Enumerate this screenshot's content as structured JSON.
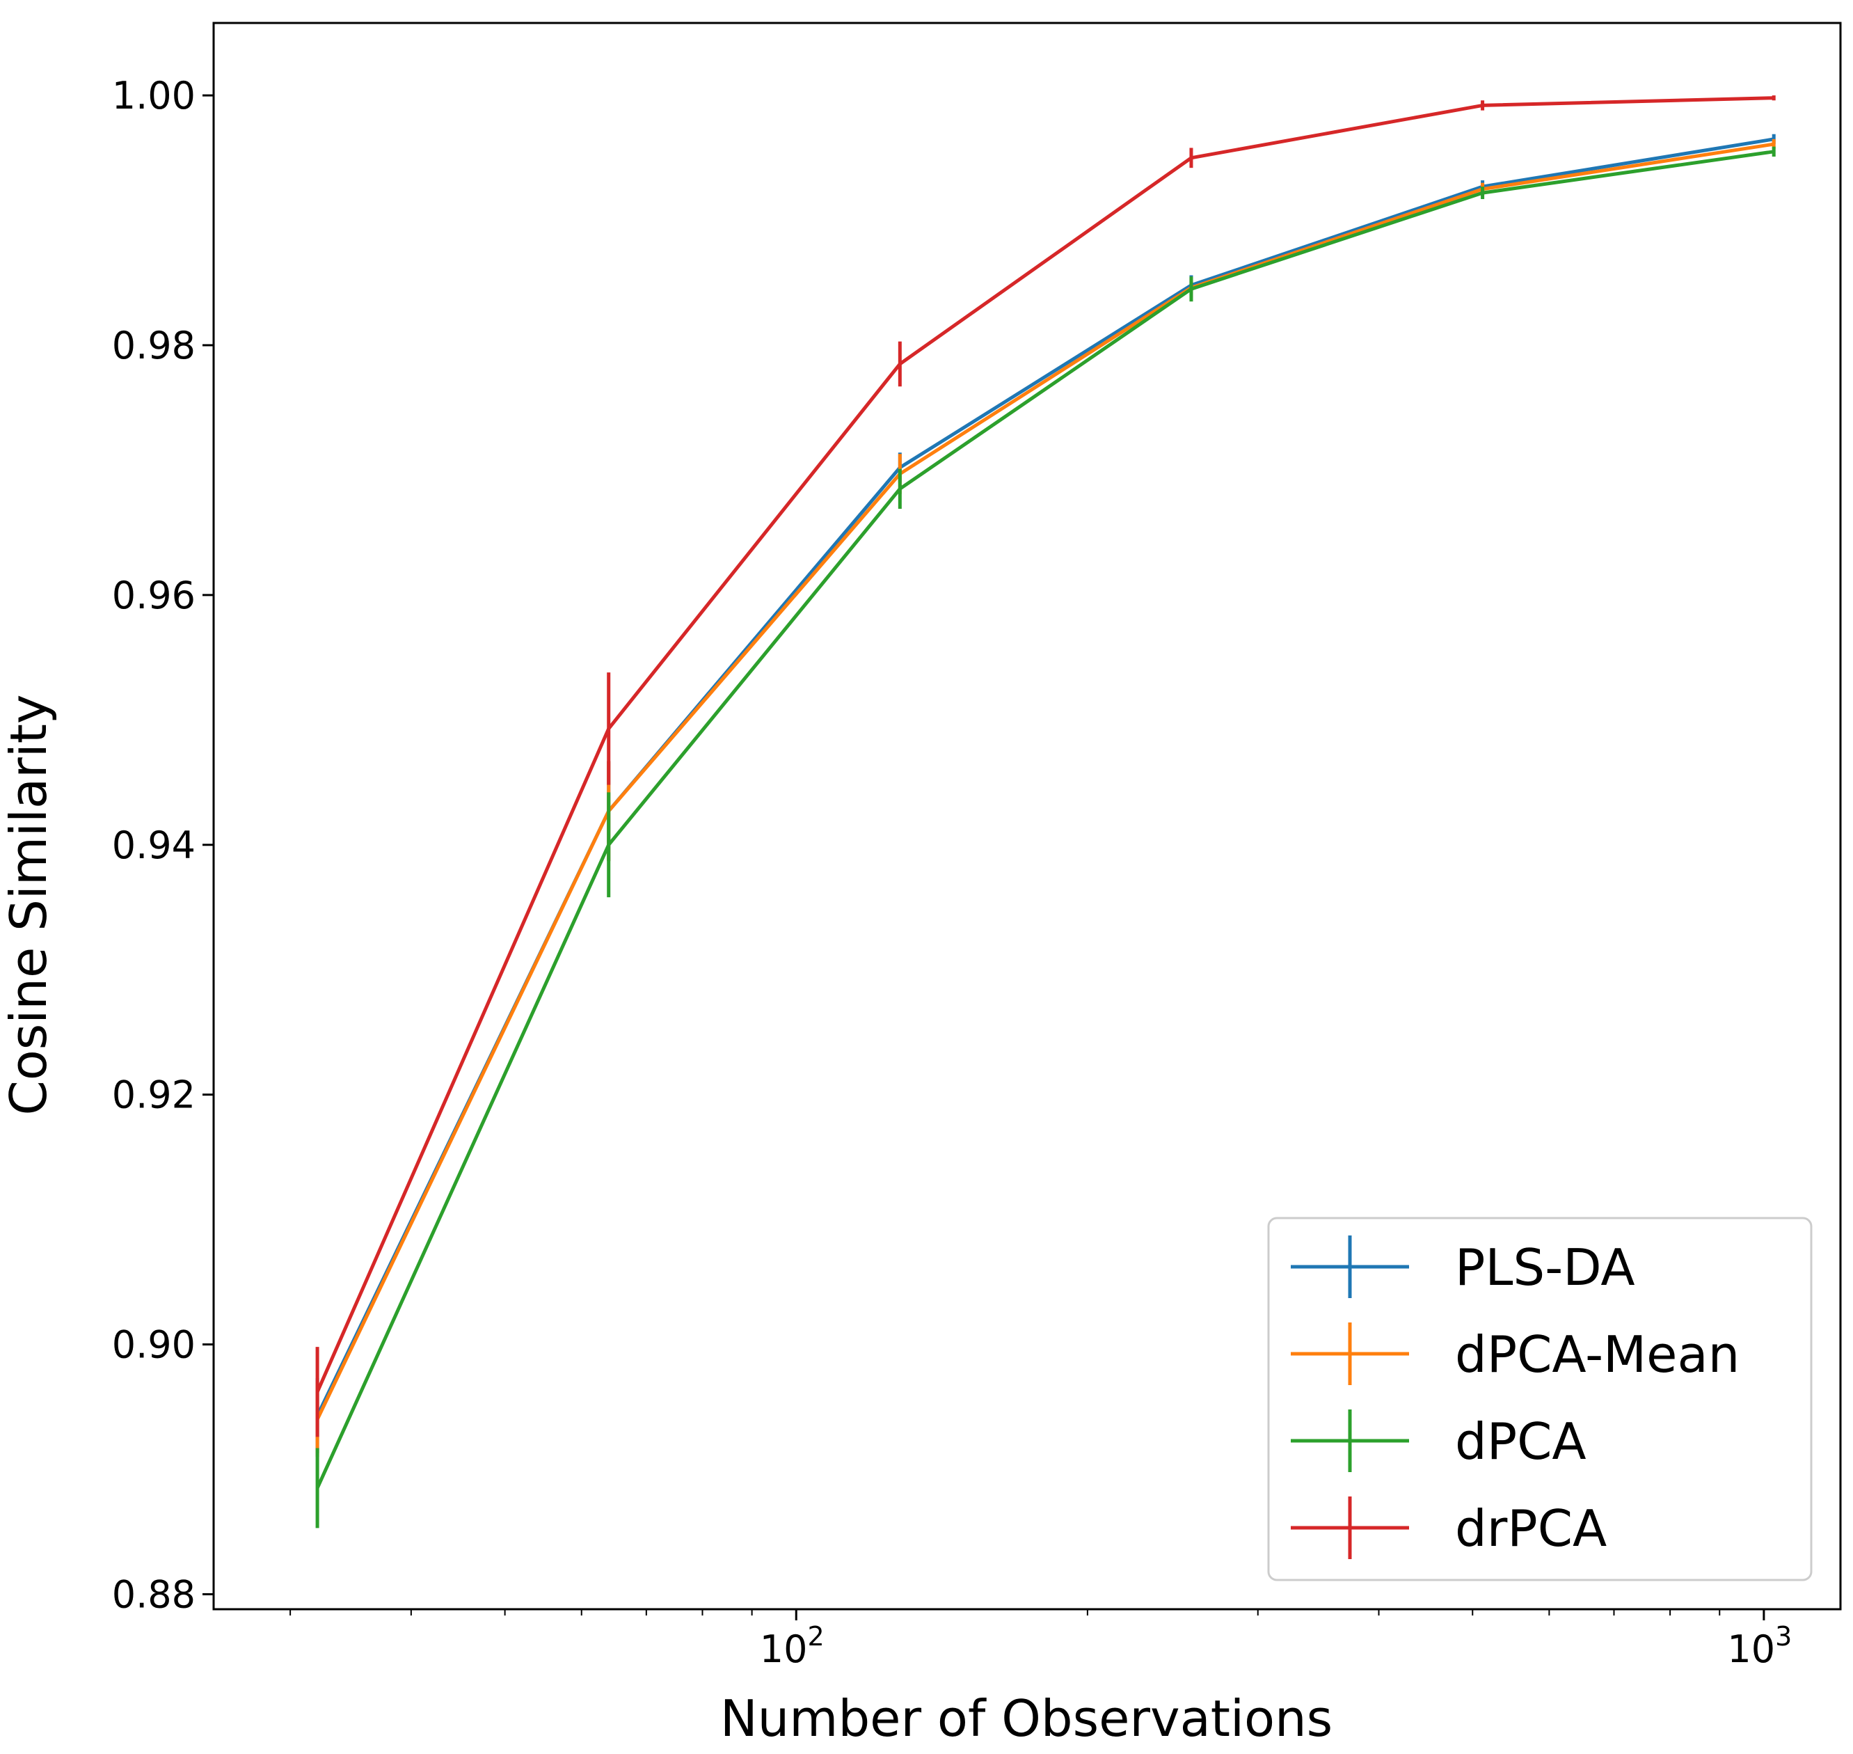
{
  "chart_data": {
    "type": "line",
    "title": "",
    "xlabel": "Number of Observations",
    "ylabel": "Cosine Similarity",
    "xscale": "log",
    "xlim": [
      25,
      1200
    ],
    "ylim": [
      0.8788,
      1.0058
    ],
    "x": [
      32,
      64,
      128,
      256,
      512,
      1024
    ],
    "xticks": [
      {
        "value": 100,
        "base": "10",
        "exp": "2"
      },
      {
        "value": 1000,
        "base": "10",
        "exp": "3"
      }
    ],
    "yticks": [
      0.88,
      0.9,
      0.92,
      0.94,
      0.96,
      0.98,
      1.0
    ],
    "yticklabels": [
      "0.88",
      "0.90",
      "0.92",
      "0.94",
      "0.96",
      "0.98",
      "1.00"
    ],
    "grid": false,
    "legend_position": "lower-right",
    "series": [
      {
        "name": "PLS-DA",
        "color": "#1f77b4",
        "values": [
          0.8943,
          0.9427,
          0.9702,
          0.9848,
          0.9927,
          0.9965
        ],
        "errors": [
          0.003,
          0.004,
          0.0012,
          0.0008,
          0.0005,
          0.0004
        ]
      },
      {
        "name": "dPCA-Mean",
        "color": "#ff7f0e",
        "values": [
          0.894,
          0.9427,
          0.9697,
          0.9846,
          0.9925,
          0.9961
        ],
        "errors": [
          0.003,
          0.004,
          0.0016,
          0.0008,
          0.0005,
          0.0004
        ]
      },
      {
        "name": "dPCA",
        "color": "#2ca02c",
        "values": [
          0.8885,
          0.94,
          0.9685,
          0.9845,
          0.9922,
          0.9955
        ],
        "errors": [
          0.0032,
          0.0042,
          0.0016,
          0.001,
          0.0005,
          0.0004
        ]
      },
      {
        "name": "drPCA",
        "color": "#d62728",
        "values": [
          0.8962,
          0.9493,
          0.9785,
          0.995,
          0.9992,
          0.9998
        ],
        "errors": [
          0.0036,
          0.0045,
          0.0018,
          0.0008,
          0.0004,
          0.0002
        ]
      }
    ]
  }
}
